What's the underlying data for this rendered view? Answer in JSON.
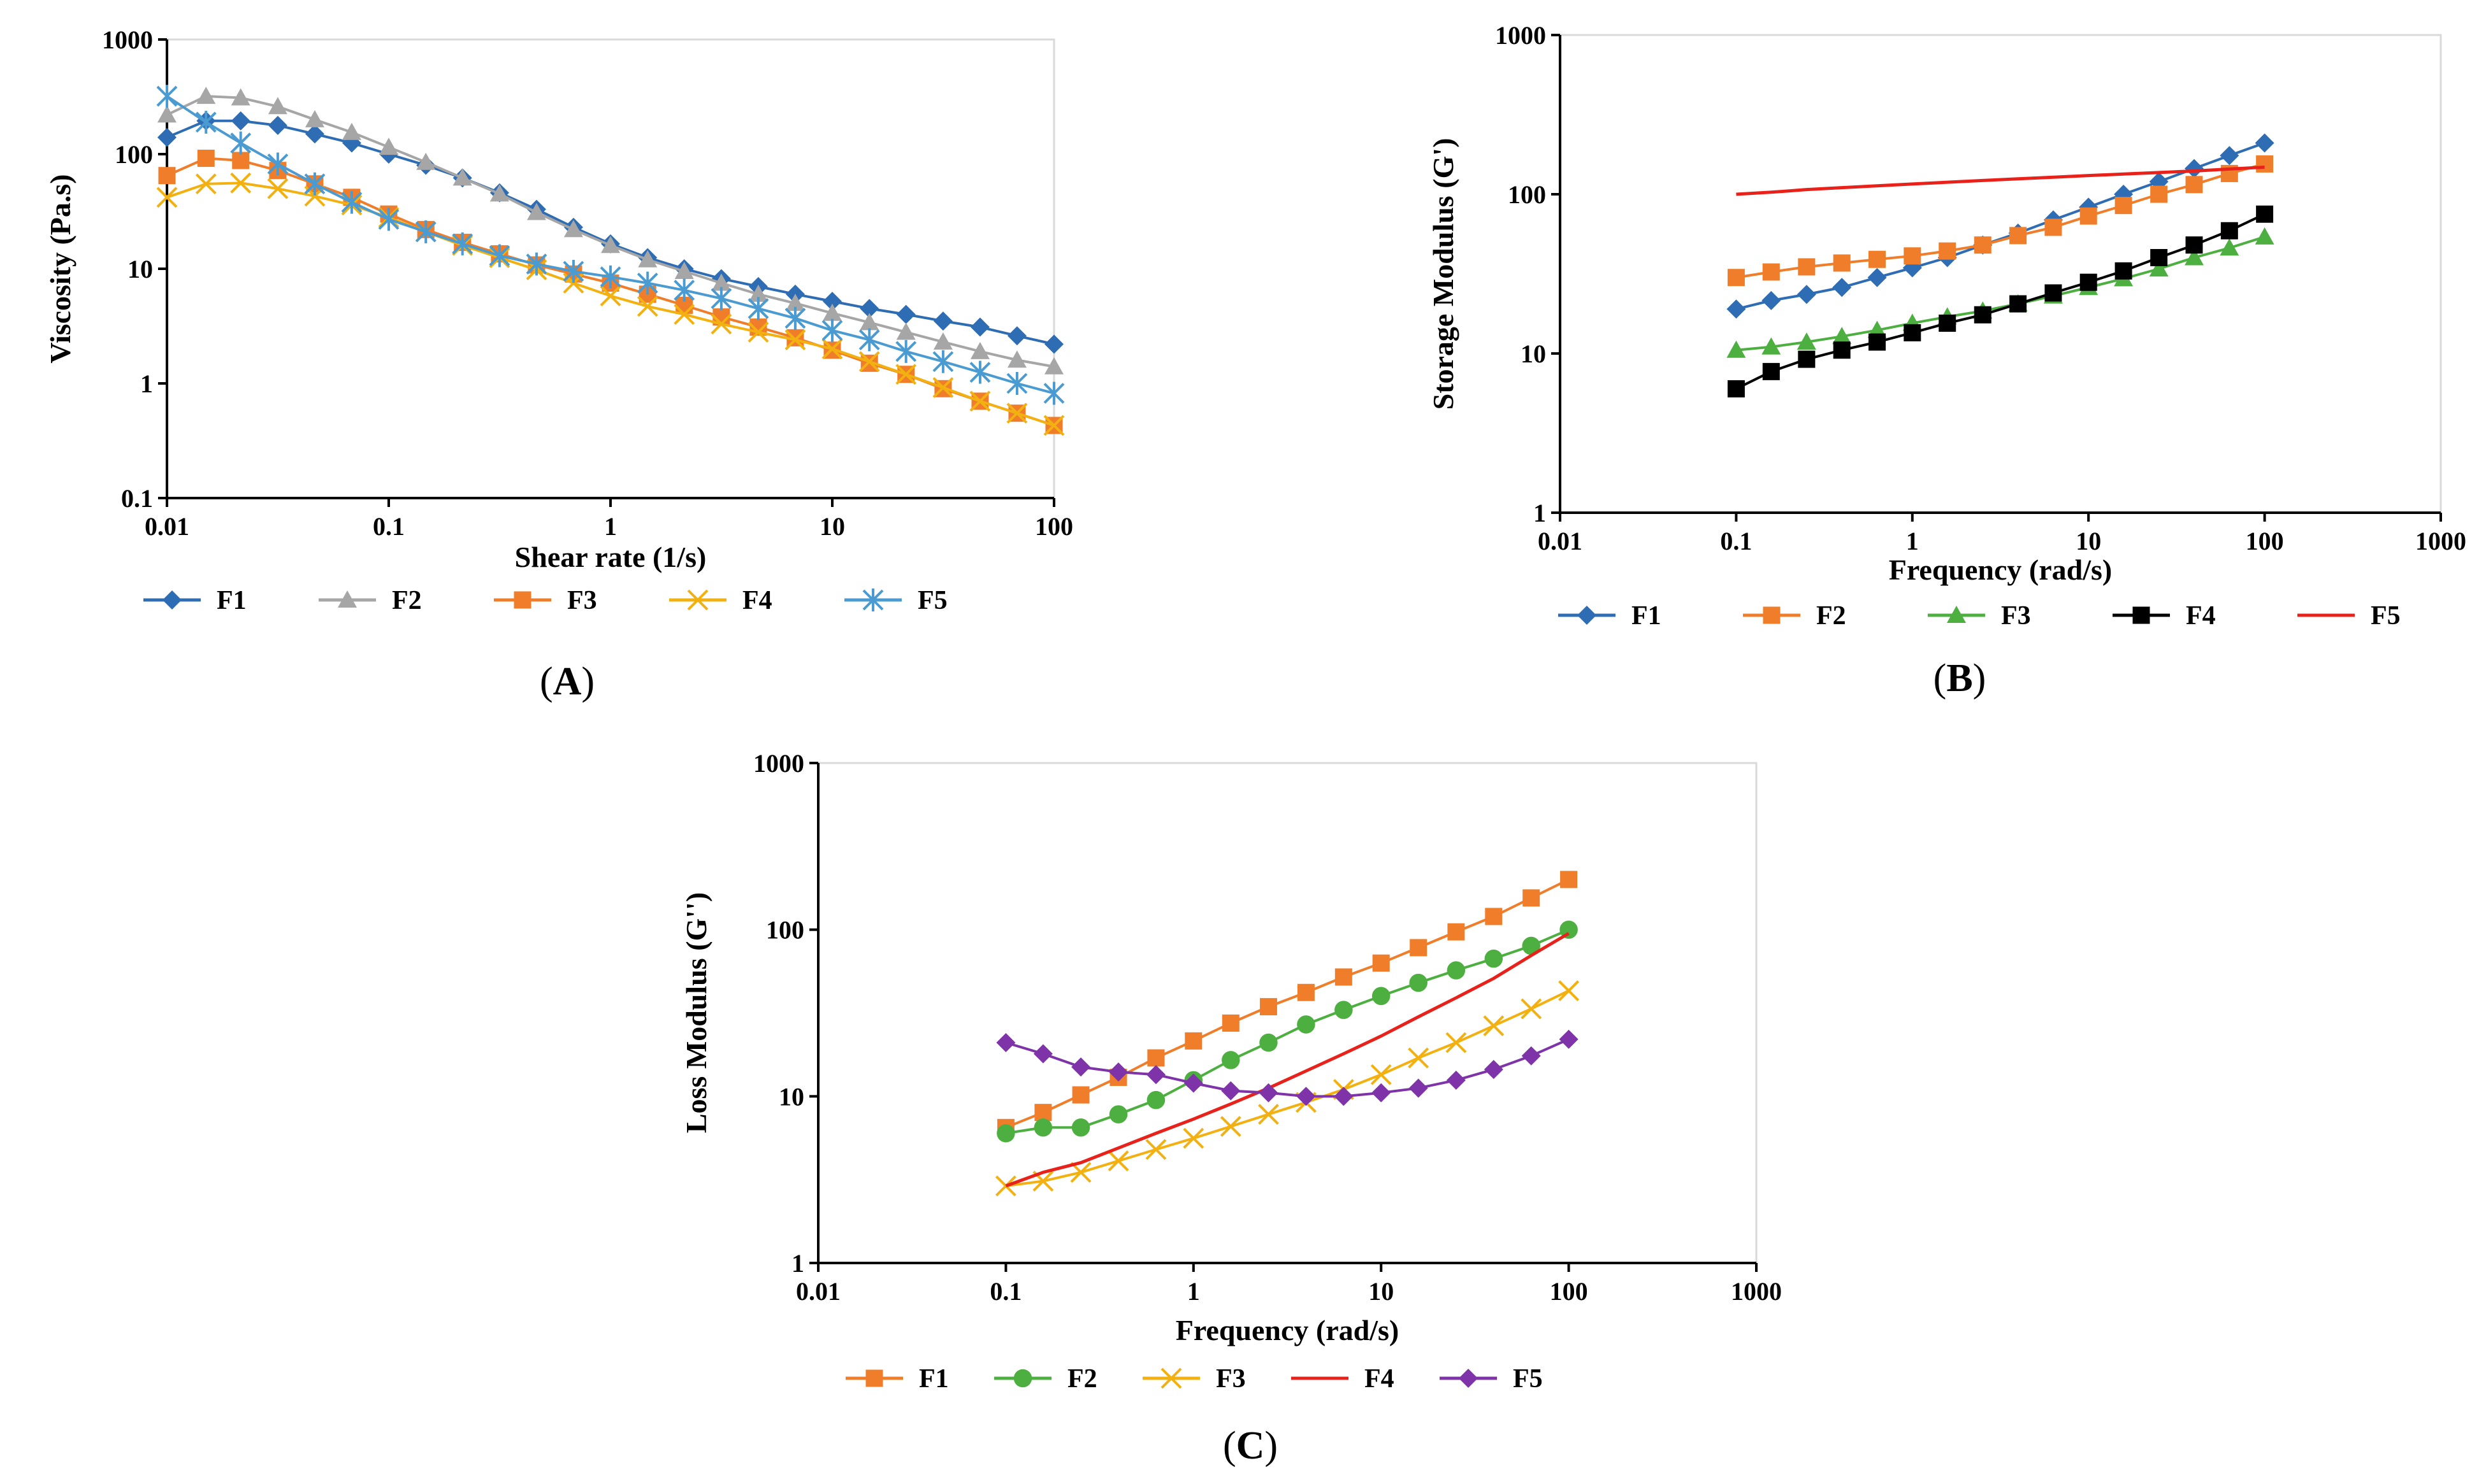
{
  "chart_data": [
    {
      "id": "A",
      "type": "line",
      "panel_label": "(A)",
      "panel_letter": "A",
      "xlabel": "Shear rate (1/s)",
      "ylabel": "Viscosity (Pa.s)",
      "xscale": "log",
      "yscale": "log",
      "xlim": [
        0.01,
        100
      ],
      "ylim": [
        0.1,
        1000
      ],
      "xticks": [
        "0.01",
        "0.1",
        "1",
        "10",
        "100"
      ],
      "yticks": [
        "0.1",
        "1",
        "10",
        "100",
        "1000"
      ],
      "gridlines": false,
      "legend_position": "bottom",
      "x": [
        0.01,
        0.015,
        0.0215,
        0.0316,
        0.0464,
        0.0681,
        0.1,
        0.147,
        0.215,
        0.316,
        0.464,
        0.681,
        1,
        1.47,
        2.15,
        3.16,
        4.64,
        6.81,
        10,
        14.7,
        21.5,
        31.6,
        46.4,
        68.1,
        100
      ],
      "series": [
        {
          "name": "F1",
          "color": "#2e6db4",
          "marker": "diamond",
          "values": [
            140,
            195,
            195,
            178,
            150,
            125,
            100,
            80,
            62,
            46,
            33,
            23,
            16.5,
            12.5,
            10,
            8.2,
            7,
            6,
            5.2,
            4.5,
            4,
            3.5,
            3.1,
            2.6,
            2.2
          ]
        },
        {
          "name": "F2",
          "color": "#a6a6a6",
          "marker": "triangle",
          "values": [
            220,
            320,
            310,
            260,
            200,
            155,
            115,
            85,
            62,
            45,
            31,
            22,
            16,
            12,
            9.5,
            7.5,
            6,
            5,
            4.1,
            3.4,
            2.8,
            2.3,
            1.9,
            1.6,
            1.4
          ]
        },
        {
          "name": "F3",
          "color": "#f07d2a",
          "marker": "square",
          "values": [
            65,
            92,
            88,
            72,
            55,
            42,
            30,
            22,
            17,
            13.5,
            10.8,
            9,
            7.5,
            6,
            4.8,
            3.8,
            3.1,
            2.5,
            1.95,
            1.5,
            1.2,
            0.9,
            0.7,
            0.55,
            0.43
          ]
        },
        {
          "name": "F4",
          "color": "#f2b111",
          "marker": "x",
          "values": [
            42,
            55,
            56,
            50,
            43,
            36,
            28,
            21,
            16,
            12.5,
            9.8,
            7.5,
            5.8,
            4.7,
            4,
            3.3,
            2.8,
            2.4,
            2,
            1.55,
            1.2,
            0.92,
            0.7,
            0.55,
            0.43
          ]
        },
        {
          "name": "F5",
          "color": "#4a9bd1",
          "marker": "star",
          "values": [
            320,
            190,
            125,
            82,
            55,
            38,
            27,
            21,
            16.5,
            13,
            11,
            9.5,
            8.5,
            7.5,
            6.5,
            5.5,
            4.5,
            3.7,
            2.9,
            2.4,
            1.9,
            1.55,
            1.25,
            1,
            0.82
          ]
        }
      ]
    },
    {
      "id": "B",
      "type": "line",
      "panel_label": "(B)",
      "panel_letter": "B",
      "xlabel": "Frequency (rad/s)",
      "ylabel": "Storage Modulus (G')",
      "xscale": "log",
      "yscale": "log",
      "xlim": [
        0.01,
        1000
      ],
      "ylim": [
        1,
        1000
      ],
      "xticks": [
        "0.01",
        "0.1",
        "1",
        "10",
        "100",
        "1000"
      ],
      "yticks": [
        "1",
        "10",
        "100",
        "1000"
      ],
      "gridlines": false,
      "legend_position": "bottom",
      "x": [
        0.1,
        0.158,
        0.251,
        0.398,
        0.631,
        1,
        1.58,
        2.51,
        3.98,
        6.31,
        10,
        15.8,
        25.1,
        39.8,
        63.1,
        100
      ],
      "series": [
        {
          "name": "F1",
          "color": "#2e6db4",
          "marker": "diamond",
          "values": [
            19,
            21.5,
            23.5,
            26,
            30,
            34.5,
            40,
            48,
            57,
            69,
            83,
            100,
            120,
            145,
            175,
            210
          ]
        },
        {
          "name": "F2",
          "color": "#f07d2a",
          "marker": "square",
          "values": [
            30,
            32.5,
            35,
            37,
            39,
            41,
            44,
            48,
            55,
            62,
            73,
            85,
            100,
            115,
            135,
            155
          ]
        },
        {
          "name": "F3",
          "color": "#4caf3f",
          "marker": "triangle",
          "values": [
            10.5,
            11,
            11.8,
            12.8,
            14,
            15.5,
            17,
            18.5,
            20.5,
            23,
            26,
            29.5,
            34,
            40,
            46,
            54
          ]
        },
        {
          "name": "F4",
          "color": "#000000",
          "marker": "square",
          "values": [
            6,
            7.7,
            9.2,
            10.5,
            11.8,
            13.5,
            15.5,
            17.5,
            20.5,
            24,
            28,
            33,
            40,
            48,
            59,
            75
          ]
        },
        {
          "name": "F5",
          "color": "#e8221b",
          "marker": "none",
          "values": [
            100,
            103,
            107,
            110,
            113,
            116,
            119,
            122,
            125,
            128,
            131,
            134,
            137,
            140,
            144,
            148
          ]
        }
      ]
    },
    {
      "id": "C",
      "type": "line",
      "panel_label": "(C)",
      "panel_letter": "C",
      "xlabel": "Frequency (rad/s)",
      "ylabel": "Loss Modulus (G'')",
      "xscale": "log",
      "yscale": "log",
      "xlim": [
        0.01,
        1000
      ],
      "ylim": [
        1,
        1000
      ],
      "xticks": [
        "0.01",
        "0.1",
        "1",
        "10",
        "100",
        "1000"
      ],
      "yticks": [
        "1",
        "10",
        "100",
        "1000"
      ],
      "gridlines": false,
      "legend_position": "bottom",
      "x": [
        0.1,
        0.158,
        0.251,
        0.398,
        0.631,
        1,
        1.58,
        2.51,
        3.98,
        6.31,
        10,
        15.8,
        25.1,
        39.8,
        63.1,
        100
      ],
      "series": [
        {
          "name": "F1",
          "color": "#f07d2a",
          "marker": "square",
          "values": [
            6.5,
            8,
            10.2,
            13,
            17,
            21.5,
            27.5,
            34.5,
            42,
            52,
            63,
            78,
            97,
            120,
            155,
            200
          ]
        },
        {
          "name": "F2",
          "color": "#4caf3f",
          "marker": "circle",
          "values": [
            6,
            6.5,
            6.5,
            7.8,
            9.5,
            12.5,
            16.5,
            21,
            27,
            33,
            40,
            48,
            57,
            67,
            80,
            100
          ]
        },
        {
          "name": "F3",
          "color": "#f2b111",
          "marker": "x",
          "values": [
            2.9,
            3.1,
            3.5,
            4.1,
            4.8,
            5.6,
            6.6,
            7.8,
            9.2,
            11,
            13.5,
            17,
            21,
            26.5,
            33.5,
            43
          ]
        },
        {
          "name": "F4",
          "color": "#e8221b",
          "marker": "none",
          "values": [
            2.9,
            3.5,
            4,
            4.9,
            6,
            7.3,
            9,
            11.2,
            14.2,
            18,
            23,
            30,
            39,
            51,
            70,
            95
          ]
        },
        {
          "name": "F5",
          "color": "#7e33a8",
          "marker": "diamond",
          "values": [
            21,
            18,
            15,
            14,
            13.5,
            12,
            10.8,
            10.5,
            10,
            10,
            10.5,
            11.2,
            12.5,
            14.5,
            17.5,
            22
          ]
        }
      ]
    }
  ]
}
